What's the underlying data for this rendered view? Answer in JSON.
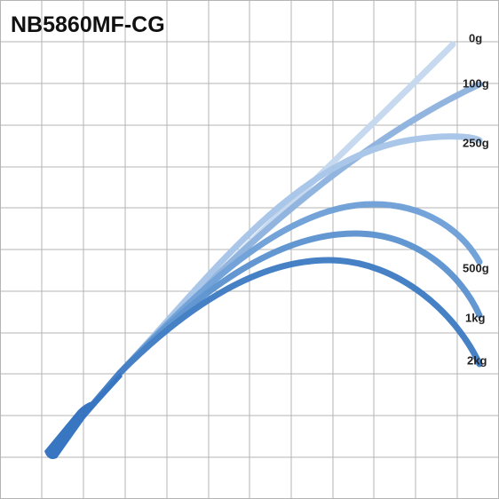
{
  "title": "NB5860MF-CG",
  "curves": [
    {
      "label": "0g"
    },
    {
      "label": "100g"
    },
    {
      "label": "250g"
    },
    {
      "label": "500g"
    },
    {
      "label": "1kg"
    },
    {
      "label": "2kg"
    }
  ]
}
